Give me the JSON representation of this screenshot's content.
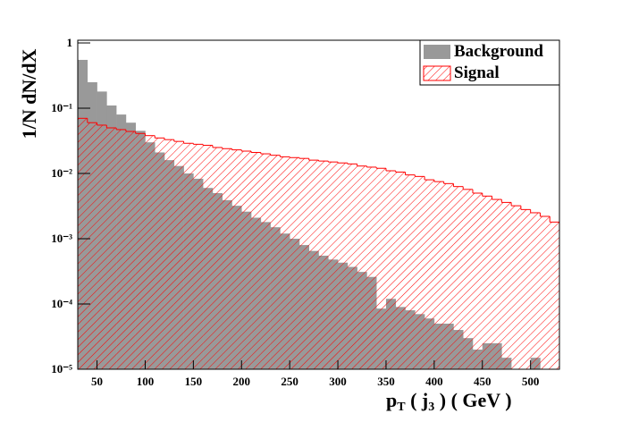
{
  "chart_data": {
    "type": "histogram",
    "ylabel": "1/N dN/dX",
    "xlabel": [
      "p",
      "T",
      " ( j",
      "3",
      " )   ( GeV )"
    ],
    "bins": [
      30,
      40,
      50,
      60,
      70,
      80,
      90,
      100,
      110,
      120,
      130,
      140,
      150,
      160,
      170,
      180,
      190,
      200,
      210,
      220,
      230,
      240,
      250,
      260,
      270,
      280,
      290,
      300,
      310,
      320,
      330,
      340,
      350,
      360,
      370,
      380,
      390,
      400,
      410,
      420,
      430,
      440,
      450,
      460,
      470,
      480,
      490,
      500,
      510,
      520,
      530
    ],
    "series": [
      {
        "name": "Background",
        "color": "#999999",
        "fill": "solid",
        "values": [
          0.55,
          0.25,
          0.18,
          0.11,
          0.08,
          0.06,
          0.045,
          0.03,
          0.021,
          0.016,
          0.013,
          0.01,
          0.0083,
          0.006,
          0.005,
          0.0039,
          0.0032,
          0.0026,
          0.0021,
          0.0018,
          0.0015,
          0.0012,
          0.001,
          0.0008,
          0.00065,
          0.00055,
          0.00048,
          0.00043,
          0.00037,
          0.00031,
          0.00026,
          8.5e-05,
          0.00012,
          9e-05,
          8e-05,
          7e-05,
          6e-05,
          5e-05,
          5e-05,
          4e-05,
          3e-05,
          2e-05,
          2.5e-05,
          2.5e-05,
          1.5e-05,
          null,
          null,
          1.5e-05,
          null,
          null
        ]
      },
      {
        "name": "Signal",
        "color": "#ff0000",
        "fill": "hatch",
        "values": [
          0.07,
          0.06,
          0.055,
          0.05,
          0.047,
          0.044,
          0.041,
          0.038,
          0.035,
          0.033,
          0.031,
          0.029,
          0.028,
          0.027,
          0.025,
          0.024,
          0.023,
          0.022,
          0.021,
          0.02,
          0.019,
          0.018,
          0.0175,
          0.017,
          0.016,
          0.0155,
          0.015,
          0.0145,
          0.014,
          0.013,
          0.0125,
          0.012,
          0.011,
          0.0105,
          0.0095,
          0.009,
          0.008,
          0.0075,
          0.007,
          0.0063,
          0.0057,
          0.005,
          0.0045,
          0.004,
          0.0036,
          0.0032,
          0.0028,
          0.0025,
          0.0022,
          0.0018
        ]
      }
    ],
    "xlim": [
      30,
      530
    ],
    "xticks": [
      50,
      100,
      150,
      200,
      250,
      300,
      350,
      400,
      450,
      500
    ],
    "ylim": [
      1e-05,
      1.1
    ],
    "ylog": true,
    "yticks": [
      {
        "value": 1e-05,
        "label": "10⁻⁵"
      },
      {
        "value": 0.0001,
        "label": "10⁻⁴"
      },
      {
        "value": 0.001,
        "label": "10⁻³"
      },
      {
        "value": 0.01,
        "label": "10⁻²"
      },
      {
        "value": 0.1,
        "label": "10⁻¹"
      },
      1
    ],
    "legend": "top-right"
  }
}
